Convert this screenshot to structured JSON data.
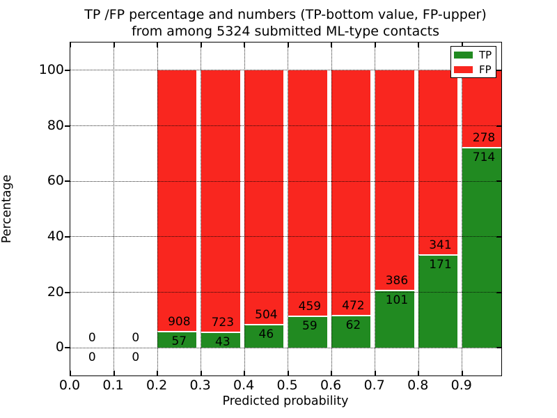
{
  "figure": {
    "title_line1": "TP /FP percentage and numbers (TP-bottom value, FP-upper)",
    "title_line2": "from among 5324 submitted ML-type contacts"
  },
  "axes": {
    "xlabel": "Predicted probability",
    "ylabel": "Percentage",
    "x_tick_labels": [
      "0.0",
      "0.1",
      "0.2",
      "0.3",
      "0.4",
      "0.5",
      "0.6",
      "0.7",
      "0.8",
      "0.9"
    ],
    "x_tick_values": [
      0.0,
      0.1,
      0.2,
      0.3,
      0.4,
      0.5,
      0.6,
      0.7,
      0.8,
      0.9
    ],
    "y_tick_labels": [
      "0",
      "20",
      "40",
      "60",
      "80",
      "100"
    ],
    "y_tick_values": [
      0,
      20,
      40,
      60,
      80,
      100
    ]
  },
  "legend": {
    "entries": [
      {
        "label": "TP",
        "color": "#218a21"
      },
      {
        "label": "FP",
        "color": "#f9261f"
      }
    ]
  },
  "colors": {
    "tp": "#218a21",
    "fp": "#f9261f",
    "grid": "#000000",
    "background": "#ffffff"
  },
  "chart_data": {
    "type": "bar",
    "variant": "stacked-100-percent",
    "title": "TP /FP percentage and numbers (TP-bottom value, FP-upper) from among 5324 submitted ML-type contacts",
    "xlabel": "Predicted probability",
    "ylabel": "Percentage",
    "xlim": [
      0.0,
      0.99
    ],
    "ylim": [
      -10,
      110
    ],
    "bar_width": 0.09,
    "grid": {
      "visible": true,
      "linestyle": "dotted"
    },
    "legend_position": "upper right",
    "total_submitted": 5324,
    "series_names": [
      "TP",
      "FP"
    ],
    "bins": [
      {
        "x": 0.0,
        "tp_count": 0,
        "fp_count": 0,
        "tp_pct": 0,
        "fp_pct": 0,
        "has_bar": false
      },
      {
        "x": 0.1,
        "tp_count": 0,
        "fp_count": 0,
        "tp_pct": 0,
        "fp_pct": 0,
        "has_bar": false
      },
      {
        "x": 0.2,
        "tp_count": 57,
        "fp_count": 908,
        "tp_pct": 5.91,
        "fp_pct": 94.09,
        "has_bar": true
      },
      {
        "x": 0.3,
        "tp_count": 43,
        "fp_count": 723,
        "tp_pct": 5.61,
        "fp_pct": 94.39,
        "has_bar": true
      },
      {
        "x": 0.4,
        "tp_count": 46,
        "fp_count": 504,
        "tp_pct": 8.36,
        "fp_pct": 91.64,
        "has_bar": true
      },
      {
        "x": 0.5,
        "tp_count": 59,
        "fp_count": 459,
        "tp_pct": 11.39,
        "fp_pct": 88.61,
        "has_bar": true
      },
      {
        "x": 0.6,
        "tp_count": 62,
        "fp_count": 472,
        "tp_pct": 11.61,
        "fp_pct": 88.39,
        "has_bar": true
      },
      {
        "x": 0.7,
        "tp_count": 101,
        "fp_count": 386,
        "tp_pct": 20.74,
        "fp_pct": 79.26,
        "has_bar": true
      },
      {
        "x": 0.8,
        "tp_count": 171,
        "fp_count": 341,
        "tp_pct": 33.4,
        "fp_pct": 66.6,
        "has_bar": true
      },
      {
        "x": 0.9,
        "tp_count": 714,
        "fp_count": 278,
        "tp_pct": 71.98,
        "fp_pct": 28.02,
        "has_bar": true
      }
    ]
  }
}
